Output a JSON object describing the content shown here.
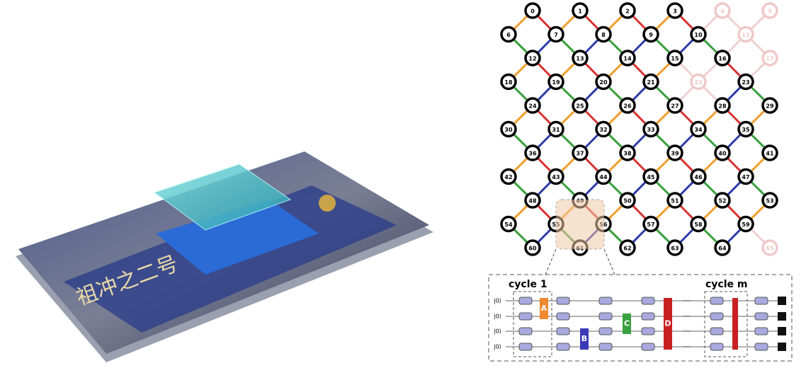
{
  "chip": {
    "label": "祖冲之二号"
  },
  "lattice": {
    "nodes": [
      0,
      1,
      2,
      3,
      4,
      5,
      6,
      7,
      8,
      9,
      10,
      11,
      12,
      13,
      14,
      15,
      16,
      17,
      18,
      19,
      20,
      21,
      22,
      23,
      24,
      25,
      26,
      27,
      28,
      29,
      30,
      31,
      32,
      33,
      34,
      35,
      36,
      37,
      38,
      39,
      40,
      41,
      42,
      43,
      44,
      45,
      46,
      47,
      48,
      49,
      50,
      51,
      52,
      53,
      54,
      55,
      56,
      57,
      58,
      59,
      60,
      61,
      62,
      63,
      64,
      65
    ]
  },
  "circuit": {
    "cycle_first": "cycle 1",
    "cycle_last": "cycle m",
    "inputs": [
      "|0⟩",
      "|0⟩",
      "|0⟩",
      "|0⟩"
    ],
    "gates": [
      "A",
      "B",
      "C",
      "D"
    ],
    "ellipsis": "⋯"
  }
}
